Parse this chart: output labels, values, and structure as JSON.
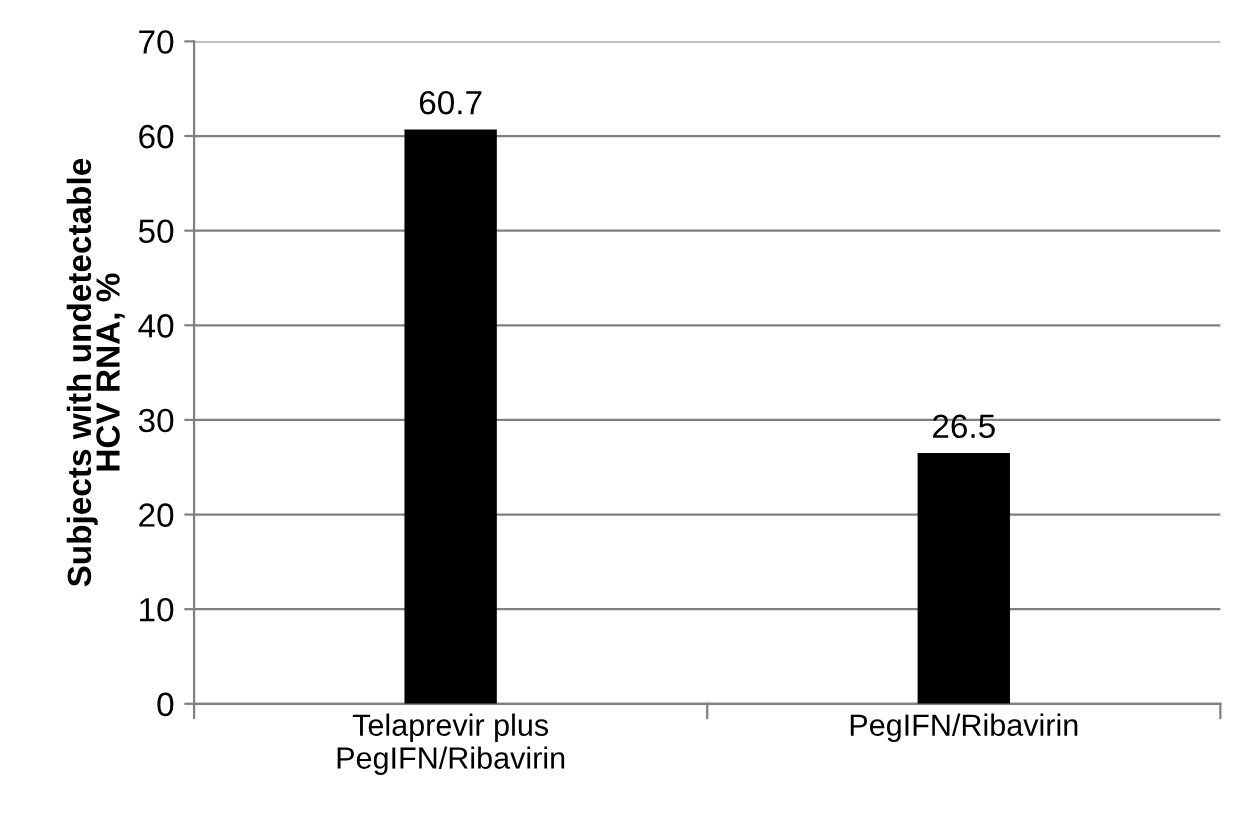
{
  "chart_data": {
    "type": "bar",
    "ylabel": "Subjects with undetectable\nHCV RNA, %",
    "categories": [
      "Telaprevir plus\nPegIFN/Ribavirin",
      "PegIFN/Ribavirin"
    ],
    "values": [
      60.7,
      26.5
    ],
    "color": "#000000",
    "ylim": [
      0,
      70
    ],
    "yticks": [
      0,
      10,
      20,
      30,
      40,
      50,
      60,
      70
    ],
    "grid": "y",
    "data_labels": true
  }
}
